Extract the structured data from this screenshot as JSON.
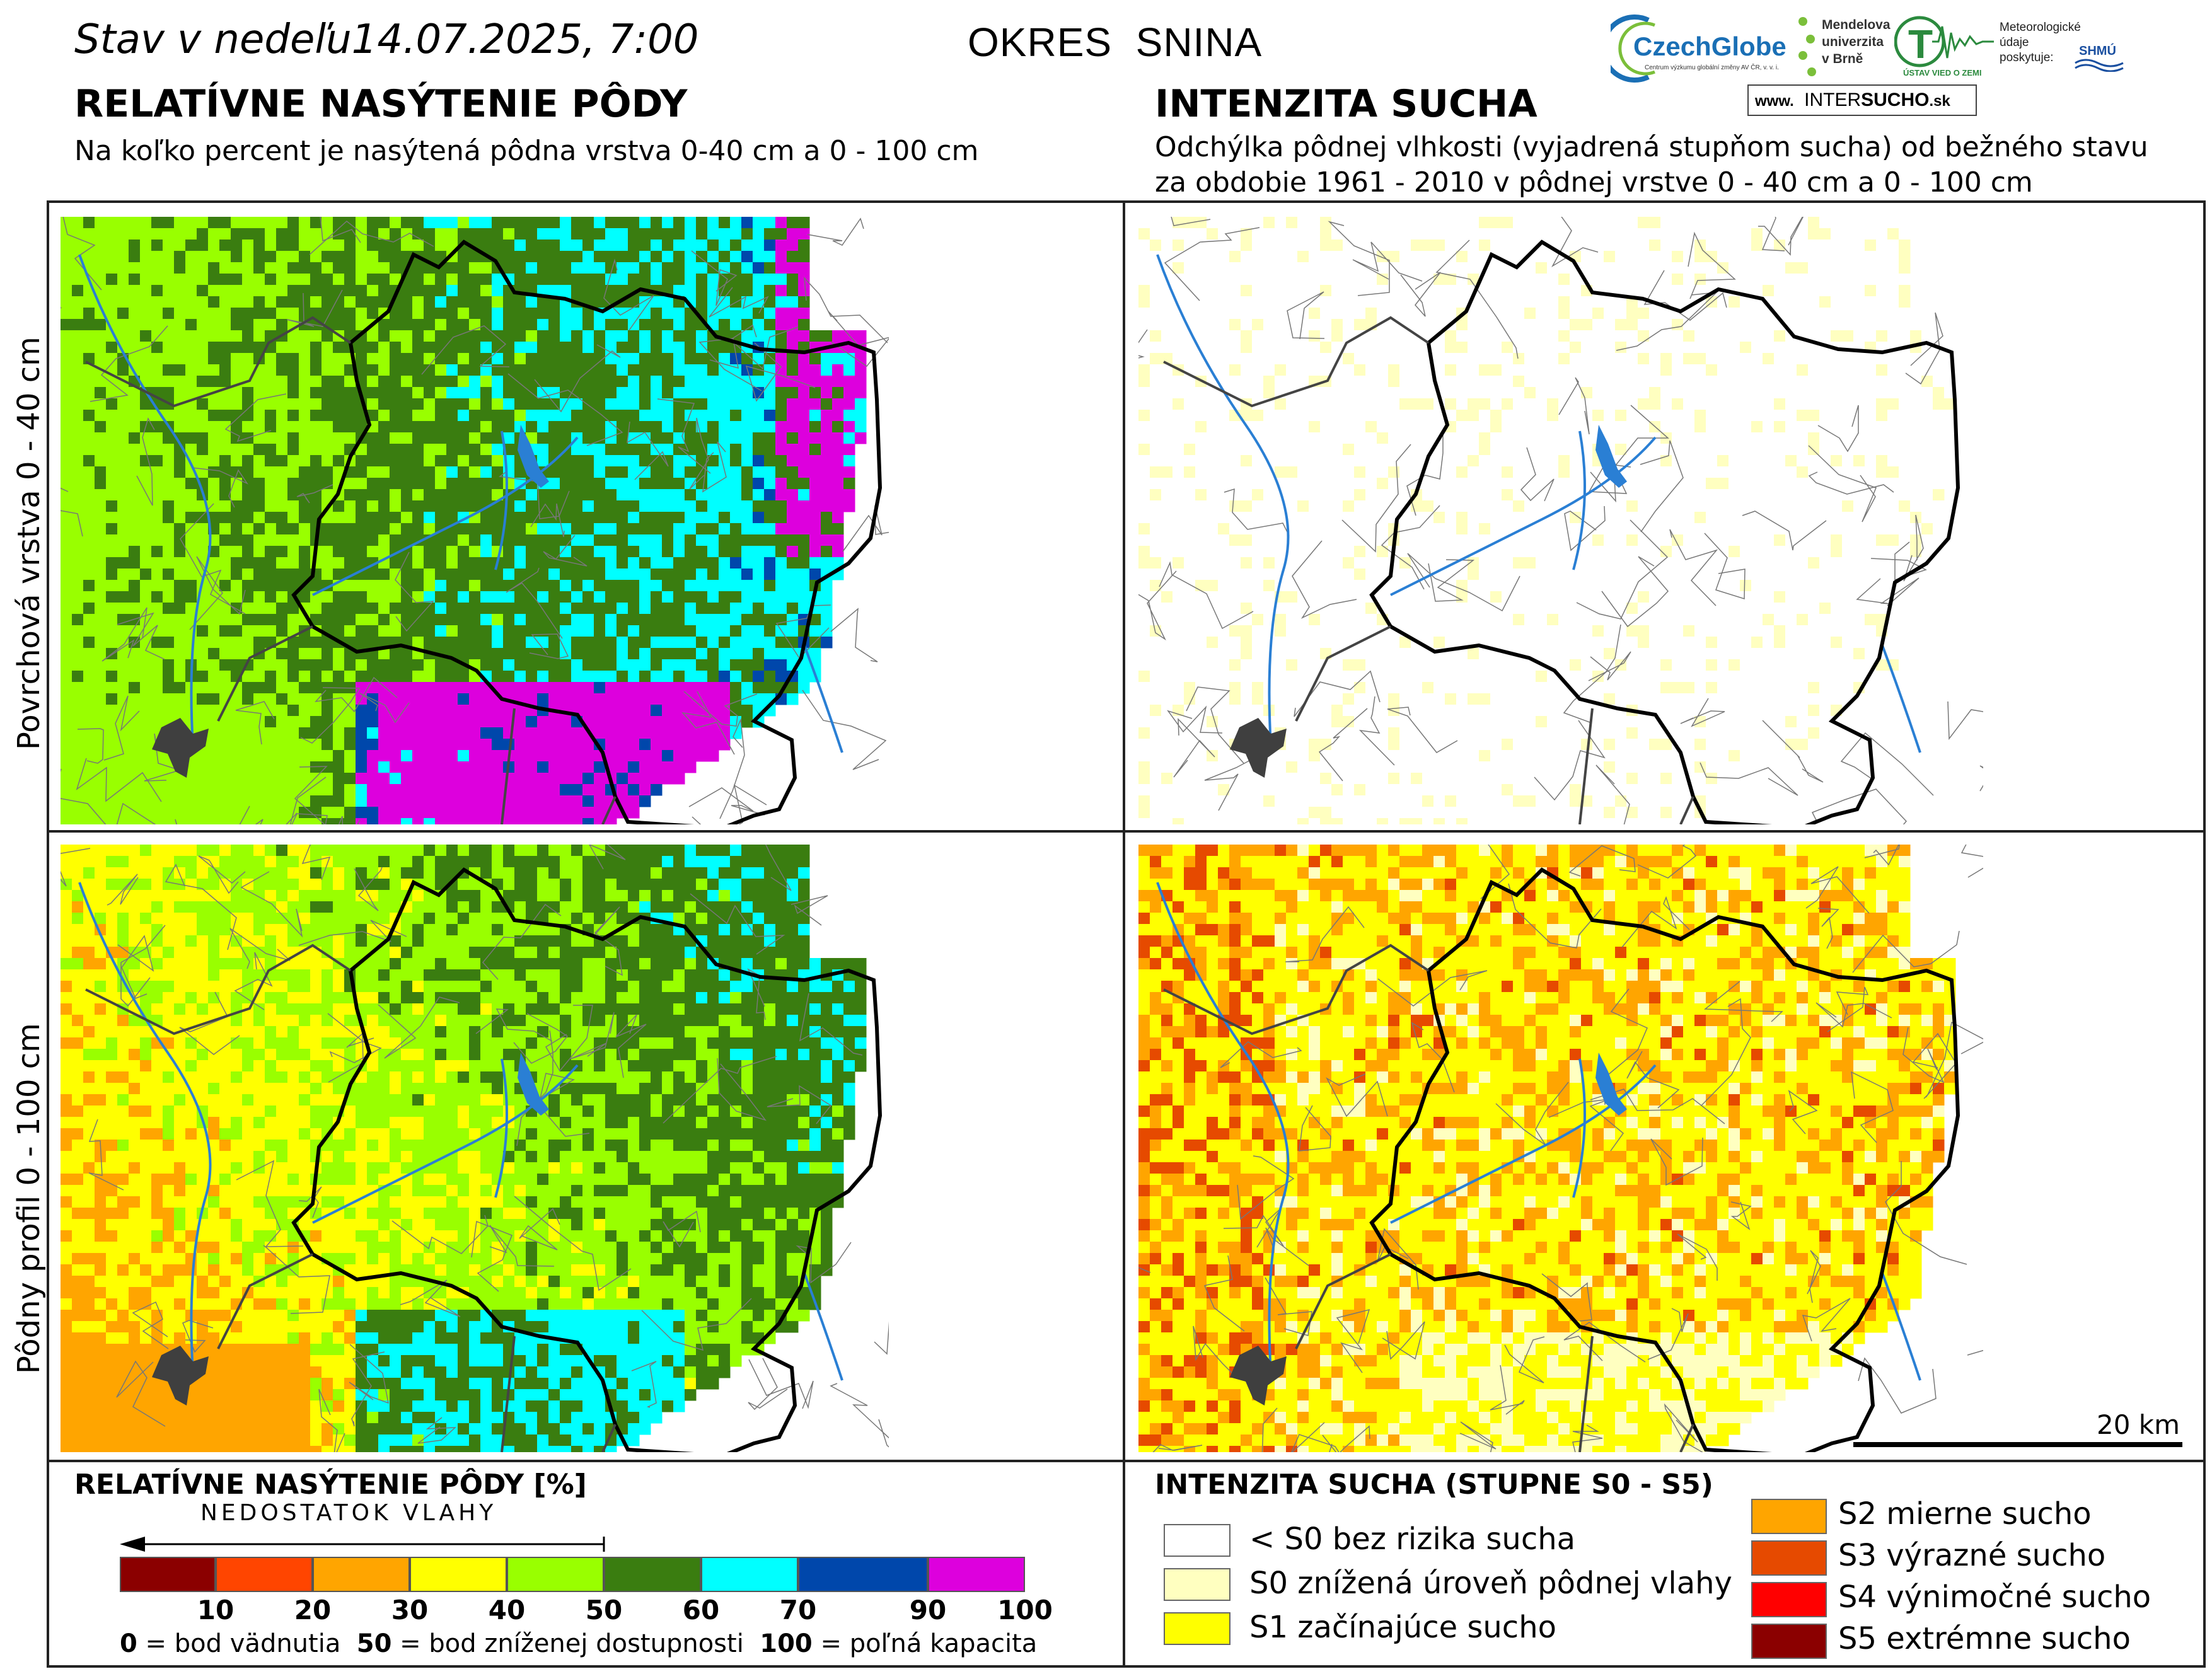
{
  "header": {
    "stav_prefix": "Stav v nedeľu",
    "stav_datetime": "14.07.2025, 7:00",
    "district": "OKRES  SNINA",
    "left_title": "RELATÍVNE NASÝTENIE PÔDY",
    "left_subtitle": "Na koľko percent je nasýtená pôdna vrstva 0-40 cm a 0 - 100 cm",
    "right_title": "INTENZITA SUCHA",
    "right_subtitle_1": "Odchýlka pôdnej vlhkosti (vyjadrená stupňom sucha) od bežného stavu",
    "right_subtitle_2": "za obdobie 1961 - 2010 v pôdnej vrstve 0 - 40 cm a 0 - 100 cm"
  },
  "logos": {
    "czechglobe": "CzechGlobe",
    "czechglobe_sub": "Centrum výzkumu globální změny AV ČR, v. v. i.",
    "mendel": [
      "Mendelova",
      "univerzita",
      "v Brně"
    ],
    "uvoz": "ÚSTAV VIED O ZEMI",
    "meteo": [
      "Meteorologické",
      "údaje",
      "poskytuje:"
    ],
    "shmu": "SHMÚ",
    "intersucho_www": "www.",
    "intersucho_a": "INTER",
    "intersucho_b": "SUCHO",
    "intersucho_c": ".sk"
  },
  "row_labels": {
    "top": "Povrchová vrstva 0 - 40 cm",
    "bottom": "Pôdny profil 0 - 100 cm"
  },
  "scale_bar": "20 km",
  "legend_left": {
    "title": "RELATÍVNE NASÝTENIE PÔDY [%]",
    "arrow_label": "NEDOSTATOK VLAHY",
    "classes": [
      {
        "color": "#8b0000"
      },
      {
        "color": "#ff4500"
      },
      {
        "color": "#ffa500"
      },
      {
        "color": "#ffff00"
      },
      {
        "color": "#99ff00"
      },
      {
        "color": "#3a7d10"
      },
      {
        "color": "#00ffff"
      },
      {
        "color": "#0047ab"
      },
      {
        "color": "#dd00dd"
      }
    ],
    "ticks": [
      "10",
      "20",
      "30",
      "40",
      "50",
      "60",
      "70",
      "90",
      "100"
    ],
    "def_0_num": "0",
    "def_0_text": " = bod vädnutia  ",
    "def_50_num": "50",
    "def_50_text": " = bod zníženej dostupnosti  ",
    "def_100_num": "100",
    "def_100_text": " = poľná kapacita"
  },
  "legend_right": {
    "title": "INTENZITA SUCHA (STUPNE S0 - S5)",
    "items": [
      {
        "label": "< S0 bez rizika sucha",
        "color": "#ffffff"
      },
      {
        "label": "S0 znížená úroveň pôdnej vlahy",
        "color": "#ffffc0"
      },
      {
        "label": "S1 začínajúce sucho",
        "color": "#ffff00"
      },
      {
        "label": "S2 mierne sucho",
        "color": "#ffa500"
      },
      {
        "label": "S3 výrazné sucho",
        "color": "#e64a00"
      },
      {
        "label": "S4 výnimočné sucho",
        "color": "#ff0000"
      },
      {
        "label": "S5 extrémne sucho",
        "color": "#8b0000"
      }
    ]
  }
}
